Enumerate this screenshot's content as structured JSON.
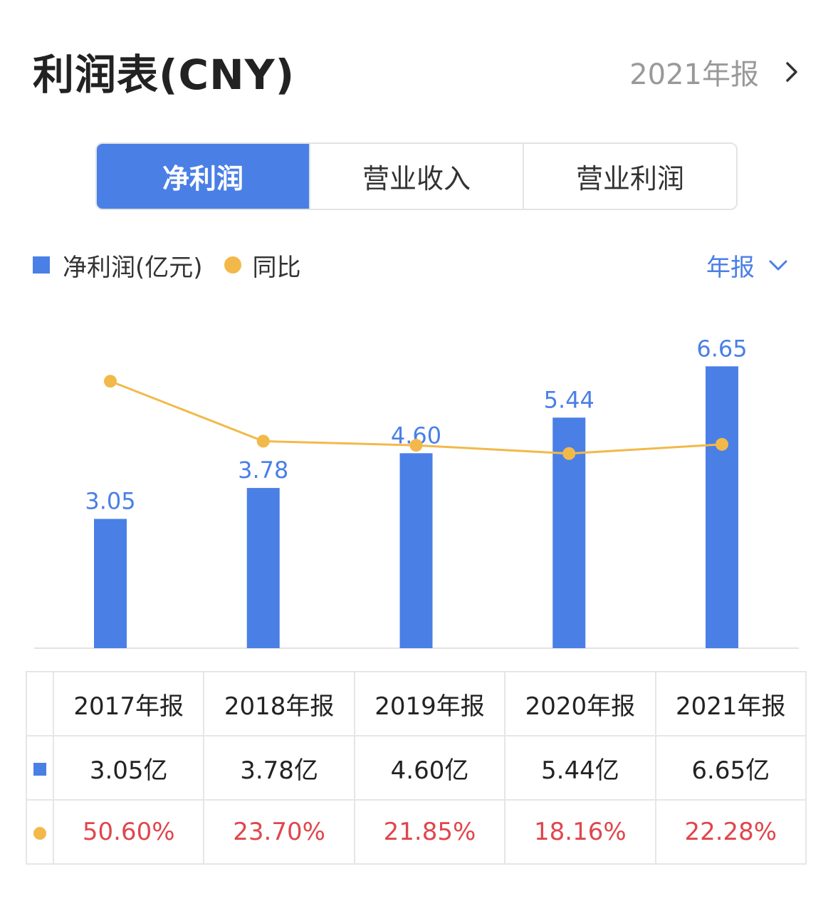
{
  "header": {
    "title": "利润表(CNY)",
    "period_label": "2021年报"
  },
  "tabs": [
    {
      "label": "净利润",
      "active": true
    },
    {
      "label": "营业收入",
      "active": false
    },
    {
      "label": "营业利润",
      "active": false
    }
  ],
  "legend": {
    "bar_label": "净利润(亿元)",
    "line_label": "同比"
  },
  "period_select": {
    "label": "年报",
    "icon": "chevron-down-icon"
  },
  "colors": {
    "accent": "#4a7fe6",
    "line": "#f2b94a",
    "negative_growth_text": "#e0464c",
    "header_icon": "chevron-right-icon"
  },
  "chart_data": {
    "type": "bar",
    "categories": [
      "2017年报",
      "2018年报",
      "2019年报",
      "2020年报",
      "2021年报"
    ],
    "series": [
      {
        "name": "净利润(亿元)",
        "type": "bar",
        "values": [
          3.05,
          3.78,
          4.6,
          5.44,
          6.65
        ],
        "value_labels": [
          "3.05",
          "3.78",
          "4.60",
          "5.44",
          "6.65"
        ]
      },
      {
        "name": "同比",
        "type": "line",
        "values": [
          50.6,
          23.7,
          21.85,
          18.16,
          22.28
        ]
      }
    ],
    "ylim": [
      0,
      7
    ],
    "grid": false,
    "legend_position": "top-left"
  },
  "table": {
    "headers": [
      "2017年报",
      "2018年报",
      "2019年报",
      "2020年报",
      "2021年报"
    ],
    "profit_row": [
      "3.05亿",
      "3.78亿",
      "4.60亿",
      "5.44亿",
      "6.65亿"
    ],
    "growth_row": [
      "50.60%",
      "23.70%",
      "21.85%",
      "18.16%",
      "22.28%"
    ]
  }
}
